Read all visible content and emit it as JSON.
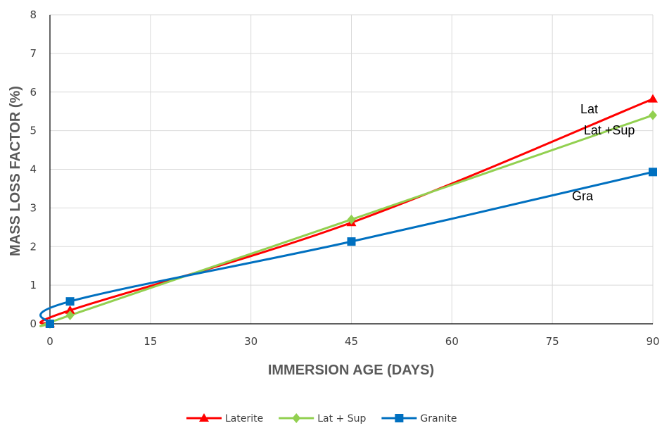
{
  "chart_data": {
    "type": "line",
    "xlabel": "IMMERSION AGE (DAYS)",
    "ylabel": "MASS LOSS FACTOR (%)",
    "xlim": [
      0,
      90
    ],
    "ylim": [
      0,
      8
    ],
    "xticks": [
      0,
      15,
      30,
      45,
      60,
      75,
      90
    ],
    "yticks": [
      0,
      1,
      2,
      3,
      4,
      5,
      6,
      7,
      8
    ],
    "grid": true,
    "legend_position": "bottom",
    "smooth": true,
    "series": [
      {
        "name": "Laterite",
        "color": "#ff0000",
        "marker": "triangle",
        "x": [
          0,
          3,
          45,
          90
        ],
        "y": [
          0,
          0.35,
          2.62,
          5.82
        ]
      },
      {
        "name": "Lat + Sup",
        "color": "#92d050",
        "marker": "diamond",
        "x": [
          0,
          3,
          45,
          90
        ],
        "y": [
          0,
          0.22,
          2.7,
          5.4
        ]
      },
      {
        "name": "Granite",
        "color": "#0070c0",
        "marker": "square",
        "x": [
          0,
          3,
          45,
          90
        ],
        "y": [
          0,
          0.58,
          2.13,
          3.93
        ]
      }
    ],
    "annotations": [
      {
        "text": "Lat",
        "x": 80.5,
        "y": 5.45
      },
      {
        "text": "Lat +Sup",
        "x": 83.5,
        "y": 4.9
      },
      {
        "text": "Gra",
        "x": 79.5,
        "y": 3.2
      }
    ]
  }
}
